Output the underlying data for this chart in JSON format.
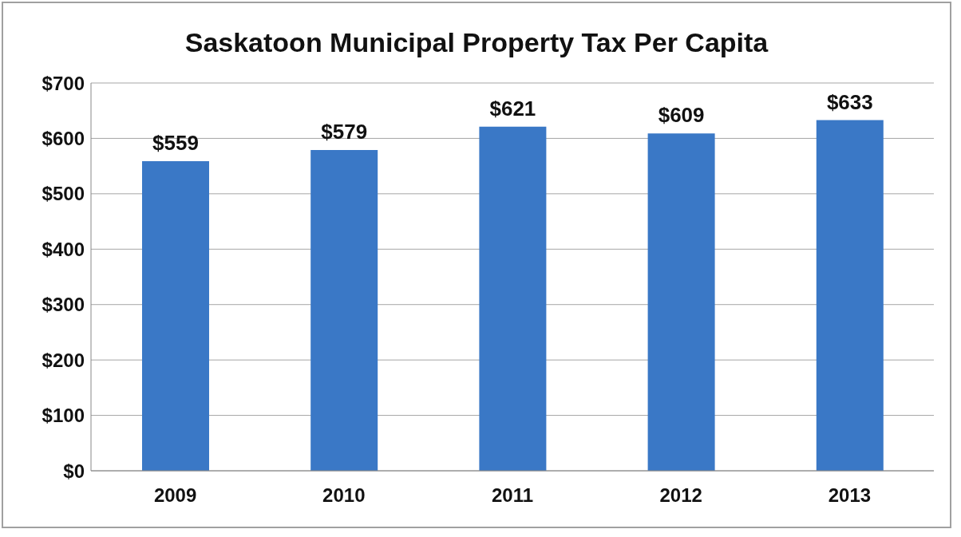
{
  "chart_data": {
    "type": "bar",
    "title": "Saskatoon Municipal Property Tax Per Capita",
    "categories": [
      "2009",
      "2010",
      "2011",
      "2012",
      "2013"
    ],
    "values": [
      559,
      579,
      621,
      609,
      633
    ],
    "value_labels": [
      "$559",
      "$579",
      "$621",
      "$609",
      "$633"
    ],
    "color": "#3a78c6",
    "ylim": [
      0,
      700
    ],
    "yticks": [
      {
        "value": 0,
        "label": "$0"
      },
      {
        "value": 100,
        "label": "$100"
      },
      {
        "value": 200,
        "label": "$200"
      },
      {
        "value": 300,
        "label": "$300"
      },
      {
        "value": 400,
        "label": "$400"
      },
      {
        "value": 500,
        "label": "$500"
      },
      {
        "value": 600,
        "label": "$600"
      },
      {
        "value": 700,
        "label": "$700"
      }
    ],
    "grid": "y"
  }
}
